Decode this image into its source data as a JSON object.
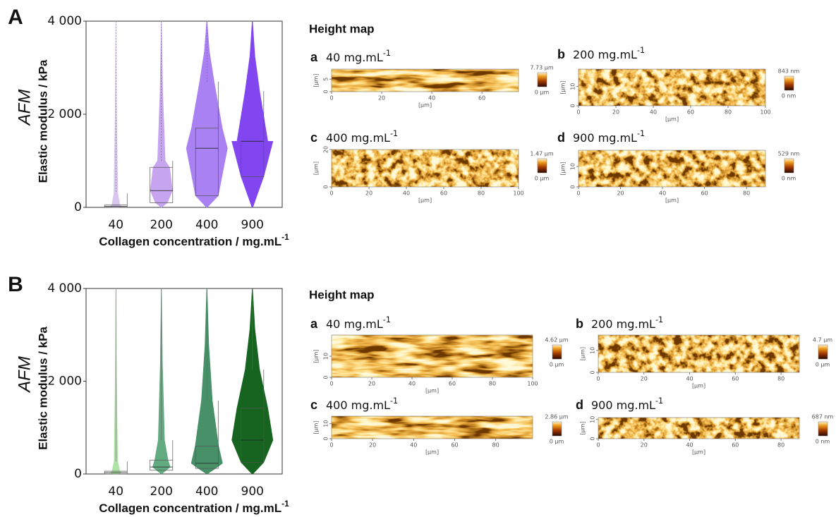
{
  "chart_data": [
    {
      "type": "violin",
      "panel": "A",
      "y_label": "Elastic modulus / kPa",
      "y_method": "AFM",
      "x_label": "Collagen concentration / mg.mL",
      "x_label_sup": "-1",
      "categories": [
        "40",
        "200",
        "400",
        "900"
      ],
      "colors": [
        "#d6c3ef",
        "#c4a0f0",
        "#a57bf2",
        "#7b3df0"
      ],
      "medians": [
        20,
        360,
        1270,
        1420
      ],
      "q1": [
        0,
        100,
        250,
        660
      ],
      "q3": [
        50,
        860,
        1700,
        1420
      ],
      "whisker_high": [
        300,
        1000,
        2700,
        2500
      ],
      "max": [
        4000,
        4000,
        4000,
        4000
      ],
      "ylim": [
        0,
        4000
      ],
      "yticks": [
        {
          "value": 4000,
          "label": "4 000"
        },
        {
          "value": 2000,
          "label": "2 000"
        },
        0
      ]
    },
    {
      "type": "violin",
      "panel": "B",
      "y_label": "Elastic modulus / kPa",
      "y_method": "AFM",
      "x_label": "Collagen concentration / mg.mL",
      "x_label_sup": "-1",
      "categories": [
        "40",
        "200",
        "400",
        "900"
      ],
      "colors": [
        "#a9e3a0",
        "#5aa67a",
        "#3f8b60",
        "#0a5c14"
      ],
      "medians": [
        30,
        150,
        230,
        730
      ],
      "q1": [
        0,
        80,
        120,
        250
      ],
      "q3": [
        60,
        300,
        600,
        1420
      ],
      "whisker_high": [
        270,
        730,
        1580,
        2250
      ],
      "max": [
        4000,
        4000,
        4000,
        4000
      ],
      "ylim": [
        0,
        4000
      ],
      "yticks": [
        {
          "value": 4000,
          "label": "4 000"
        },
        {
          "value": 2000,
          "label": "2 000"
        },
        0
      ]
    }
  ],
  "height_maps": [
    {
      "title": "Height map",
      "panels": [
        {
          "letter": "a",
          "label": "40 mg.mL",
          "label_sup": "-1",
          "unit": "[µm]",
          "xlim": [
            0,
            74.6
          ],
          "xticks": [
            0,
            20,
            40,
            60
          ],
          "ylim": [
            0,
            9
          ],
          "yticks": [
            0,
            5
          ],
          "scale_max": "7.73 µm",
          "scale_min": "0 µm"
        },
        {
          "letter": "b",
          "label": "200 mg.mL",
          "label_sup": "-1",
          "unit": "[µm]",
          "xlim": [
            0,
            100
          ],
          "xticks": [
            0,
            20,
            40,
            60,
            80,
            100
          ],
          "ylim": [
            0,
            19
          ],
          "yticks": [
            0,
            10
          ],
          "scale_max": "843 nm",
          "scale_min": "0 nm"
        },
        {
          "letter": "c",
          "label": "400 mg.mL",
          "label_sup": "-1",
          "unit": "[µm]",
          "xlim": [
            0,
            100
          ],
          "xticks": [
            0,
            20,
            40,
            60,
            80,
            100
          ],
          "ylim": [
            0,
            20
          ],
          "yticks": [
            0,
            20
          ],
          "scale_max": "1.47 µm",
          "scale_min": "0 µm"
        },
        {
          "letter": "d",
          "label": "900 mg.mL",
          "label_sup": "-1",
          "unit": "[µm]",
          "xlim": [
            0,
            89
          ],
          "xticks": [
            0,
            20,
            40,
            60,
            80
          ],
          "ylim": [
            0,
            18
          ],
          "yticks": [
            0,
            10
          ],
          "scale_max": "529 nm",
          "scale_min": "0 nm"
        }
      ]
    },
    {
      "title": "Height map",
      "panels": [
        {
          "letter": "a",
          "label": "40 mg.mL",
          "label_sup": "-1",
          "unit": "[µm]",
          "xlim": [
            0,
            100
          ],
          "xticks": [
            0,
            20,
            40,
            60,
            80,
            100
          ],
          "ylim": [
            0,
            20
          ],
          "yticks": [
            0,
            10
          ],
          "scale_max": "4.62 µm",
          "scale_min": "0 µm"
        },
        {
          "letter": "b",
          "label": "200 mg.mL",
          "label_sup": "-1",
          "unit": "[µm]",
          "xlim": [
            0,
            88
          ],
          "xticks": [
            0,
            20,
            40,
            60,
            80
          ],
          "ylim": [
            0,
            17
          ],
          "yticks": [
            0,
            10
          ],
          "scale_max": "4.7 µm",
          "scale_min": "0 µm"
        },
        {
          "letter": "c",
          "label": "400 mg.mL",
          "label_sup": "-1",
          "unit": "[µm]",
          "xlim": [
            0,
            98
          ],
          "xticks": [
            0,
            20,
            40,
            60,
            80
          ],
          "ylim": [
            0,
            15
          ],
          "yticks": [
            0,
            10
          ],
          "scale_max": "2.86 µm",
          "scale_min": "0 µm"
        },
        {
          "letter": "d",
          "label": "900 mg.mL",
          "label_sup": "-1",
          "unit": "[µm]",
          "xlim": [
            0,
            88
          ],
          "xticks": [
            0,
            20,
            40,
            60,
            80
          ],
          "ylim": [
            0,
            11
          ],
          "yticks": [
            0,
            10
          ],
          "scale_max": "687 nm",
          "scale_min": "0 nm"
        }
      ]
    }
  ]
}
